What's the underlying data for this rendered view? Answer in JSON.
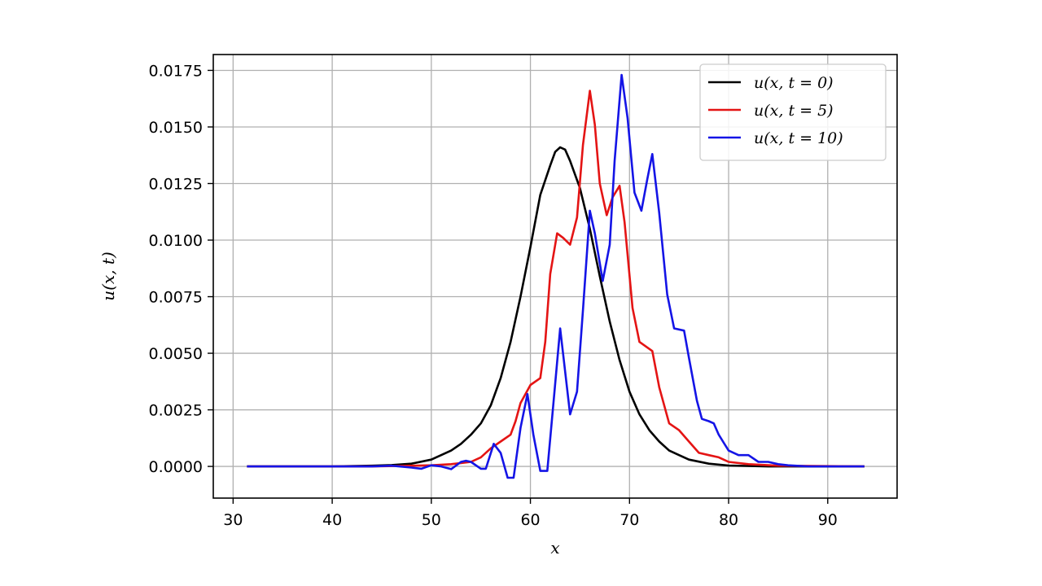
{
  "chart_data": {
    "type": "line",
    "xlabel": "x",
    "ylabel": "u(x, t)",
    "xlim": [
      28,
      97
    ],
    "ylim": [
      -0.0014,
      0.0182
    ],
    "xticks": [
      30,
      40,
      50,
      60,
      70,
      80,
      90
    ],
    "yticks": [
      0.0,
      0.0025,
      0.005,
      0.0075,
      0.01,
      0.0125,
      0.015,
      0.0175
    ],
    "ytick_labels": [
      "0.0000",
      "0.0025",
      "0.0050",
      "0.0075",
      "0.0100",
      "0.0125",
      "0.0150",
      "0.0175"
    ],
    "grid": true,
    "legend": {
      "position": "top-right"
    },
    "series": [
      {
        "name": "u(x, t = 0)",
        "color": "#000000",
        "points": [
          [
            31.4,
            0.0
          ],
          [
            40,
            0.0
          ],
          [
            44,
            3e-05
          ],
          [
            46,
            6e-05
          ],
          [
            48,
            0.00012
          ],
          [
            50,
            0.0003
          ],
          [
            52,
            0.0007
          ],
          [
            53,
            0.001
          ],
          [
            54,
            0.0014
          ],
          [
            55,
            0.0019
          ],
          [
            56,
            0.0027
          ],
          [
            57,
            0.0039
          ],
          [
            58,
            0.0055
          ],
          [
            59,
            0.0075
          ],
          [
            60,
            0.0097
          ],
          [
            61,
            0.012
          ],
          [
            62,
            0.0133
          ],
          [
            62.5,
            0.0139
          ],
          [
            63,
            0.0141
          ],
          [
            63.5,
            0.014
          ],
          [
            64,
            0.0135
          ],
          [
            65,
            0.0123
          ],
          [
            66,
            0.0105
          ],
          [
            67,
            0.0084
          ],
          [
            68,
            0.0064
          ],
          [
            69,
            0.0047
          ],
          [
            70,
            0.0033
          ],
          [
            71,
            0.0023
          ],
          [
            72,
            0.0016
          ],
          [
            73,
            0.0011
          ],
          [
            74,
            0.0007
          ],
          [
            75,
            0.0005
          ],
          [
            76,
            0.0003
          ],
          [
            78,
            0.00012
          ],
          [
            80,
            4e-05
          ],
          [
            84,
            0.0
          ],
          [
            93.7,
            0.0
          ]
        ]
      },
      {
        "name": "u(x, t = 5)",
        "color": "#e41414",
        "points": [
          [
            31.4,
            0.0
          ],
          [
            44,
            0.0
          ],
          [
            48,
            3e-05
          ],
          [
            50,
            5e-05
          ],
          [
            52,
            0.0001
          ],
          [
            53,
            0.00015
          ],
          [
            54,
            0.0002
          ],
          [
            55,
            0.0004
          ],
          [
            56,
            0.0008
          ],
          [
            57,
            0.0011
          ],
          [
            58,
            0.0014
          ],
          [
            58.5,
            0.002
          ],
          [
            59,
            0.0028
          ],
          [
            60,
            0.0036
          ],
          [
            61,
            0.0039
          ],
          [
            61.5,
            0.0055
          ],
          [
            62,
            0.0085
          ],
          [
            62.7,
            0.0103
          ],
          [
            63.3,
            0.0101
          ],
          [
            64,
            0.0098
          ],
          [
            64.7,
            0.011
          ],
          [
            65.3,
            0.0142
          ],
          [
            66,
            0.0166
          ],
          [
            66.5,
            0.0151
          ],
          [
            67,
            0.0125
          ],
          [
            67.7,
            0.0111
          ],
          [
            68.3,
            0.0119
          ],
          [
            69,
            0.0124
          ],
          [
            69.5,
            0.0108
          ],
          [
            70.3,
            0.007
          ],
          [
            71,
            0.0055
          ],
          [
            72.3,
            0.0051
          ],
          [
            73,
            0.0035
          ],
          [
            74,
            0.0019
          ],
          [
            75,
            0.0016
          ],
          [
            76,
            0.0011
          ],
          [
            77,
            0.0006
          ],
          [
            78,
            0.0005
          ],
          [
            79,
            0.0004
          ],
          [
            80,
            0.0002
          ],
          [
            82,
            0.0001
          ],
          [
            85,
            3e-05
          ],
          [
            93.7,
            0.0
          ]
        ]
      },
      {
        "name": "u(x, t = 10)",
        "color": "#1414e6",
        "points": [
          [
            31.4,
            0.0
          ],
          [
            44,
            0.0
          ],
          [
            46,
            3e-05
          ],
          [
            48,
            -5e-05
          ],
          [
            49,
            -0.0001
          ],
          [
            50,
            5e-05
          ],
          [
            51,
            0.0
          ],
          [
            52,
            -0.00012
          ],
          [
            53,
            0.0002
          ],
          [
            53.5,
            0.00025
          ],
          [
            54,
            0.0002
          ],
          [
            55,
            -0.0001
          ],
          [
            55.5,
            -0.0001
          ],
          [
            56.3,
            0.001
          ],
          [
            57,
            0.0006
          ],
          [
            57.7,
            -0.0005
          ],
          [
            58.3,
            -0.0005
          ],
          [
            59,
            0.0017
          ],
          [
            59.7,
            0.0032
          ],
          [
            60.3,
            0.0014
          ],
          [
            61,
            -0.0002
          ],
          [
            61.7,
            -0.0002
          ],
          [
            62.3,
            0.0027
          ],
          [
            63,
            0.0061
          ],
          [
            64,
            0.0023
          ],
          [
            64.7,
            0.0033
          ],
          [
            65.3,
            0.0069
          ],
          [
            66,
            0.0113
          ],
          [
            66.5,
            0.0103
          ],
          [
            67.3,
            0.0082
          ],
          [
            68,
            0.0098
          ],
          [
            68.5,
            0.0135
          ],
          [
            69.2,
            0.0173
          ],
          [
            69.8,
            0.0154
          ],
          [
            70.5,
            0.0121
          ],
          [
            71.2,
            0.0113
          ],
          [
            71.8,
            0.0127
          ],
          [
            72.3,
            0.0138
          ],
          [
            73,
            0.0112
          ],
          [
            73.8,
            0.0076
          ],
          [
            74.5,
            0.0061
          ],
          [
            75.5,
            0.006
          ],
          [
            76,
            0.0048
          ],
          [
            76.8,
            0.0029
          ],
          [
            77.3,
            0.0021
          ],
          [
            78,
            0.002
          ],
          [
            78.5,
            0.0019
          ],
          [
            79,
            0.0014
          ],
          [
            80,
            0.0007
          ],
          [
            81,
            0.0005
          ],
          [
            82,
            0.0005
          ],
          [
            83,
            0.0002
          ],
          [
            84,
            0.0002
          ],
          [
            85,
            0.0001
          ],
          [
            86,
            5e-05
          ],
          [
            88,
            0.0
          ],
          [
            93.7,
            0.0
          ]
        ]
      }
    ]
  }
}
